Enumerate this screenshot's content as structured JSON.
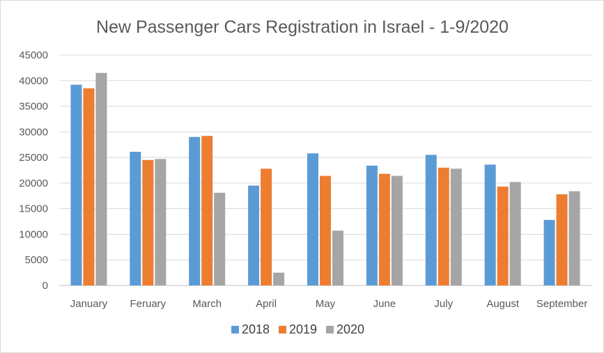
{
  "chart_data": {
    "type": "bar",
    "title": "New Passenger Cars Registration in Israel - 1-9/2020",
    "xlabel": "",
    "ylabel": "",
    "categories": [
      "January",
      "Feruary",
      "March",
      "April",
      "May",
      "June",
      "July",
      "August",
      "September"
    ],
    "series": [
      {
        "name": "2018",
        "color": "#5b9bd5",
        "values": [
          39200,
          26100,
          29000,
          19500,
          25800,
          23400,
          25500,
          23600,
          12800
        ]
      },
      {
        "name": "2019",
        "color": "#ed7d31",
        "values": [
          38500,
          24500,
          29200,
          22800,
          21400,
          21800,
          23000,
          19300,
          17800
        ]
      },
      {
        "name": "2020",
        "color": "#a5a5a5",
        "values": [
          41500,
          24700,
          18100,
          2500,
          10700,
          21400,
          22800,
          20200,
          18400
        ]
      }
    ],
    "ylim": [
      0,
      45000
    ],
    "yticks": [
      0,
      5000,
      10000,
      15000,
      20000,
      25000,
      30000,
      35000,
      40000,
      45000
    ],
    "grid": true,
    "legend": "bottom"
  }
}
